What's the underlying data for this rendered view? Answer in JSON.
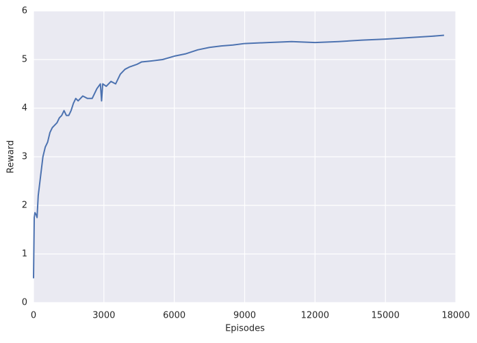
{
  "chart_data": {
    "type": "line",
    "x_label": "Episodes",
    "y_label": "Reward",
    "x": [
      0,
      30,
      60,
      120,
      150,
      200,
      300,
      400,
      500,
      600,
      700,
      800,
      1000,
      1100,
      1200,
      1300,
      1400,
      1500,
      1600,
      1700,
      1800,
      1900,
      2000,
      2100,
      2300,
      2500,
      2700,
      2850,
      2900,
      2950,
      3100,
      3300,
      3500,
      3700,
      3900,
      4100,
      4400,
      4600,
      5000,
      5500,
      6000,
      6500,
      7000,
      7500,
      8000,
      8500,
      9000,
      10000,
      11000,
      12000,
      13000,
      14000,
      15000,
      16000,
      17000,
      17500
    ],
    "series": [
      {
        "name": "Reward",
        "color": "#4c72b0",
        "values": [
          0.5,
          1.75,
          1.85,
          1.8,
          1.75,
          2.2,
          2.6,
          3.0,
          3.2,
          3.3,
          3.5,
          3.6,
          3.7,
          3.8,
          3.85,
          3.95,
          3.85,
          3.85,
          3.95,
          4.1,
          4.2,
          4.15,
          4.2,
          4.25,
          4.2,
          4.2,
          4.4,
          4.5,
          4.15,
          4.5,
          4.45,
          4.55,
          4.5,
          4.7,
          4.8,
          4.85,
          4.9,
          4.95,
          4.97,
          5.0,
          5.07,
          5.12,
          5.2,
          5.25,
          5.28,
          5.3,
          5.33,
          5.35,
          5.37,
          5.35,
          5.37,
          5.4,
          5.42,
          5.45,
          5.48,
          5.5
        ]
      }
    ],
    "xlim": [
      0,
      18000
    ],
    "xticks": [
      0,
      3000,
      6000,
      9000,
      12000,
      15000,
      18000
    ],
    "ylim": [
      0,
      6
    ],
    "yticks": [
      0,
      1,
      2,
      3,
      4,
      5,
      6
    ],
    "grid": true,
    "background": "#eaeaf2"
  }
}
